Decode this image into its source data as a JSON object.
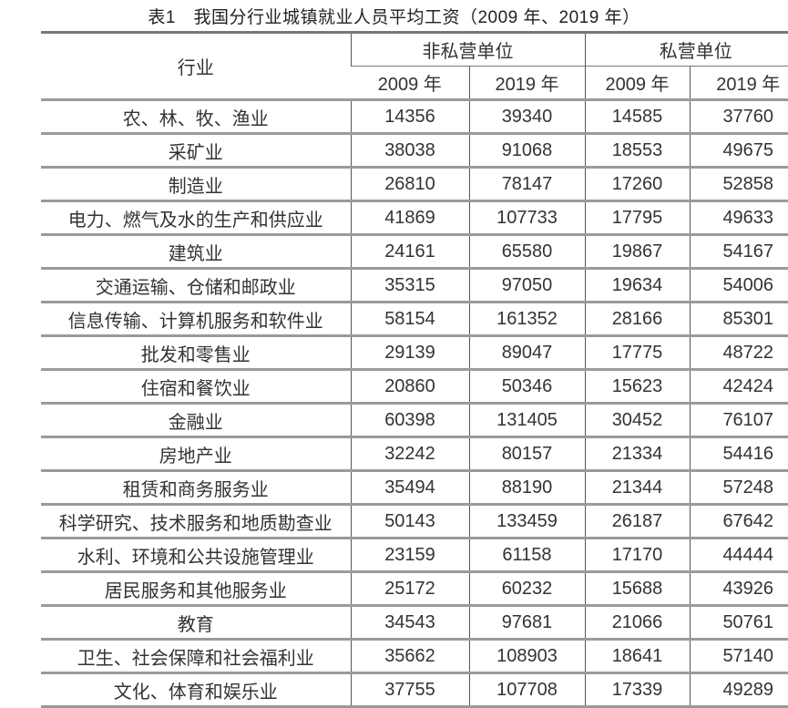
{
  "title": "表1　我国分行业城镇就业人员平均工资（2009 年、2019 年）",
  "header": {
    "industry": "行业",
    "groups": [
      "非私营单位",
      "私营单位"
    ],
    "years": [
      "2009 年",
      "2019 年",
      "2009 年",
      "2019 年"
    ]
  },
  "rows": [
    {
      "industry": "农、林、牧、渔业",
      "values": [
        "14356",
        "39340",
        "14585",
        "37760"
      ]
    },
    {
      "industry": "采矿业",
      "values": [
        "38038",
        "91068",
        "18553",
        "49675"
      ]
    },
    {
      "industry": "制造业",
      "values": [
        "26810",
        "78147",
        "17260",
        "52858"
      ]
    },
    {
      "industry": "电力、燃气及水的生产和供应业",
      "values": [
        "41869",
        "107733",
        "17795",
        "49633"
      ]
    },
    {
      "industry": "建筑业",
      "values": [
        "24161",
        "65580",
        "19867",
        "54167"
      ]
    },
    {
      "industry": "交通运输、仓储和邮政业",
      "values": [
        "35315",
        "97050",
        "19634",
        "54006"
      ]
    },
    {
      "industry": "信息传输、计算机服务和软件业",
      "values": [
        "58154",
        "161352",
        "28166",
        "85301"
      ]
    },
    {
      "industry": "批发和零售业",
      "values": [
        "29139",
        "89047",
        "17775",
        "48722"
      ]
    },
    {
      "industry": "住宿和餐饮业",
      "values": [
        "20860",
        "50346",
        "15623",
        "42424"
      ]
    },
    {
      "industry": "金融业",
      "values": [
        "60398",
        "131405",
        "30452",
        "76107"
      ]
    },
    {
      "industry": "房地产业",
      "values": [
        "32242",
        "80157",
        "21334",
        "54416"
      ]
    },
    {
      "industry": "租赁和商务服务业",
      "values": [
        "35494",
        "88190",
        "21344",
        "57248"
      ]
    },
    {
      "industry": "科学研究、技术服务和地质勘查业",
      "values": [
        "50143",
        "133459",
        "26187",
        "67642"
      ]
    },
    {
      "industry": "水利、环境和公共设施管理业",
      "values": [
        "23159",
        "61158",
        "17170",
        "44444"
      ]
    },
    {
      "industry": "居民服务和其他服务业",
      "values": [
        "25172",
        "60232",
        "15688",
        "43926"
      ]
    },
    {
      "industry": "教育",
      "values": [
        "34543",
        "97681",
        "21066",
        "50761"
      ]
    },
    {
      "industry": "卫生、社会保障和社会福利业",
      "values": [
        "35662",
        "108903",
        "18641",
        "57140"
      ]
    },
    {
      "industry": "文化、体育和娱乐业",
      "values": [
        "37755",
        "107708",
        "17339",
        "49289"
      ]
    }
  ]
}
